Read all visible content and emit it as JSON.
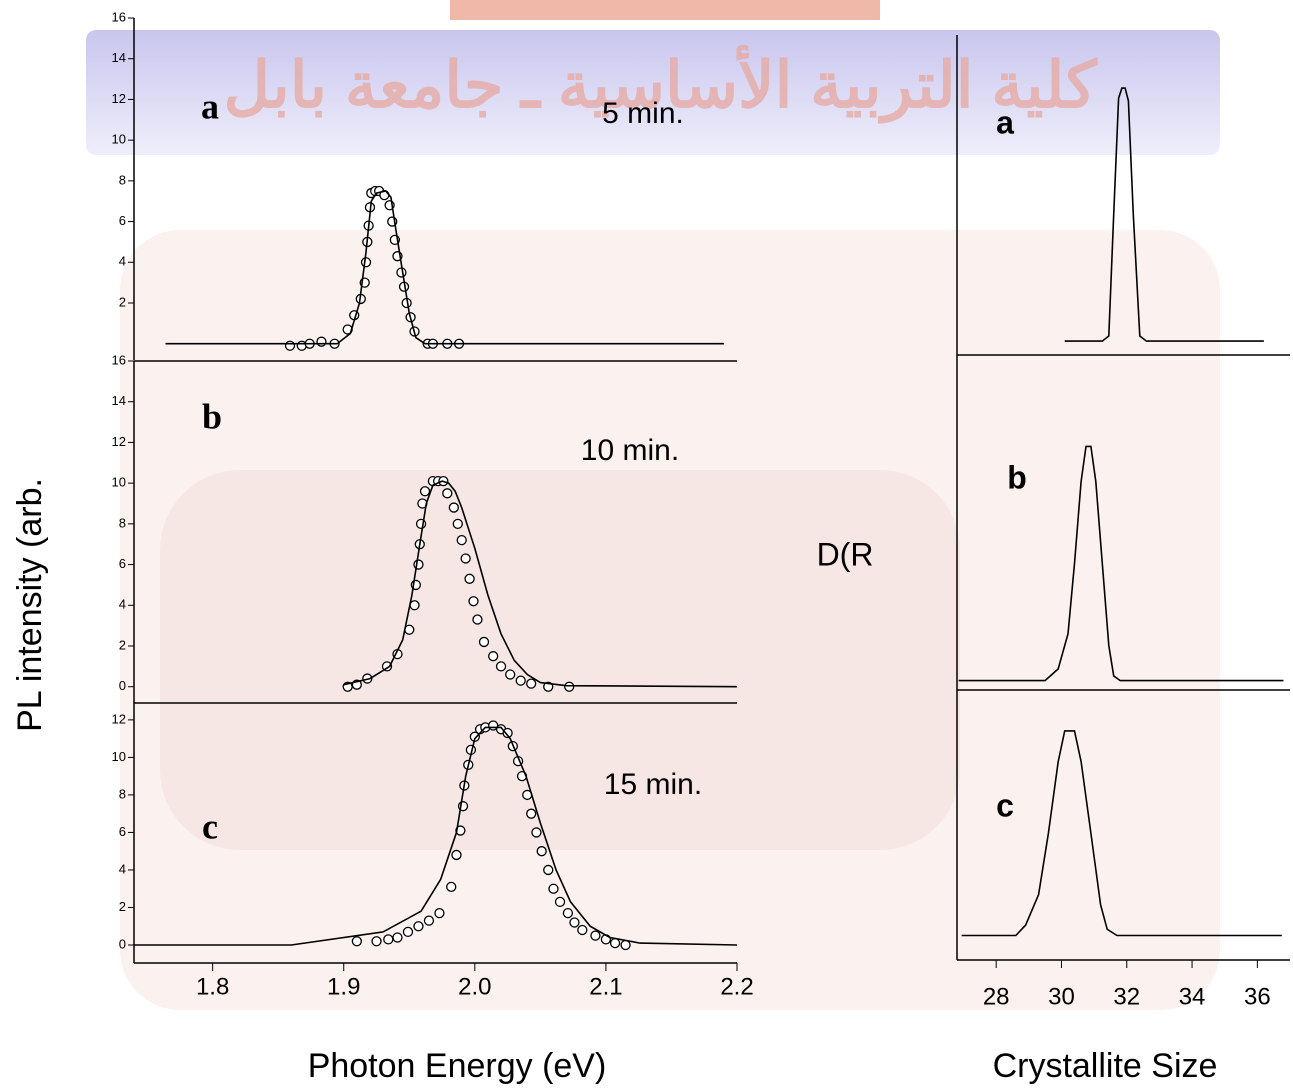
{
  "watermark": "كلية التربية الأساسية ـ جامعة بابل",
  "chart_data": [
    {
      "type": "line",
      "panel_label": "a",
      "annotation": "5 min.",
      "xlim": [
        1.74,
        2.2
      ],
      "ylim": [
        -0.8,
        16
      ],
      "yticks": [
        2,
        4,
        6,
        8,
        10,
        12,
        14,
        16
      ],
      "series": [
        {
          "style": "markers",
          "color": "#000000",
          "x": [
            1.859,
            1.868,
            1.874,
            1.883,
            1.893,
            1.903,
            1.908,
            1.913,
            1.916,
            1.917,
            1.918,
            1.919,
            1.92,
            1.921,
            1.924,
            1.927,
            1.931,
            1.935,
            1.937,
            1.939,
            1.941,
            1.944,
            1.946,
            1.948,
            1.951,
            1.954,
            1.964,
            1.968,
            1.979,
            1.988
          ],
          "values": [
            -0.1,
            -0.1,
            0,
            0.1,
            0,
            0.7,
            1.4,
            2.2,
            3.0,
            4.0,
            5.0,
            5.8,
            6.7,
            7.4,
            7.5,
            7.5,
            7.3,
            6.8,
            6.0,
            5.1,
            4.3,
            3.5,
            2.8,
            2.0,
            1.3,
            0.6,
            0,
            0,
            0,
            0
          ]
        },
        {
          "style": "line",
          "color": "#000000",
          "x": [
            1.764,
            1.895,
            1.905,
            1.912,
            1.917,
            1.921,
            1.925,
            1.932,
            1.936,
            1.94,
            1.945,
            1.95,
            1.955,
            1.962,
            2.19
          ],
          "values": [
            0,
            0,
            0.5,
            2,
            4.5,
            7.0,
            7.4,
            7.5,
            7.2,
            5.5,
            3.5,
            1.5,
            0.3,
            0,
            0
          ]
        }
      ]
    },
    {
      "type": "line",
      "panel_label": "b",
      "annotation": "10 min.",
      "ylabel": "PL intensity (arb.",
      "xlim": [
        1.74,
        2.2
      ],
      "ylim": [
        -0.8,
        16
      ],
      "yticks": [
        0,
        2,
        4,
        6,
        8,
        10,
        12,
        14,
        16
      ],
      "series": [
        {
          "style": "markers",
          "color": "#000000",
          "x": [
            1.903,
            1.91,
            1.918,
            1.933,
            1.941,
            1.95,
            1.954,
            1.955,
            1.957,
            1.958,
            1.959,
            1.96,
            1.962,
            1.968,
            1.972,
            1.976,
            1.979,
            1.984,
            1.987,
            1.99,
            1.993,
            1.996,
            1.999,
            2.002,
            2.007,
            2.014,
            2.02,
            2.027,
            2.035,
            2.043,
            2.056,
            2.072
          ],
          "values": [
            0,
            0.1,
            0.4,
            1.0,
            1.6,
            2.8,
            4.0,
            5.0,
            6.0,
            7.0,
            8.0,
            9.0,
            9.6,
            10.1,
            10.1,
            10.1,
            9.5,
            8.8,
            8.0,
            7.2,
            6.3,
            5.3,
            4.2,
            3.3,
            2.2,
            1.5,
            1.0,
            0.6,
            0.3,
            0.15,
            0,
            0
          ]
        },
        {
          "style": "line",
          "color": "#000000",
          "x": [
            1.9,
            1.92,
            1.935,
            1.945,
            1.952,
            1.958,
            1.963,
            1.968,
            1.975,
            1.98,
            1.985,
            1.99,
            2.0,
            2.01,
            2.02,
            2.03,
            2.04,
            2.05,
            2.07,
            2.2
          ],
          "values": [
            0.1,
            0.4,
            1.0,
            2.3,
            4.5,
            7,
            9,
            9.9,
            10.1,
            10,
            9.6,
            8.8,
            6.8,
            4.5,
            2.6,
            1.3,
            0.6,
            0.2,
            0.05,
            0
          ]
        }
      ]
    },
    {
      "type": "line",
      "panel_label": "c",
      "annotation": "15 min.",
      "xlabel": "Photon Energy (eV)",
      "xlim": [
        1.74,
        2.2
      ],
      "ylim": [
        -0.96,
        12.9
      ],
      "yticks": [
        0,
        2,
        4,
        6,
        8,
        10,
        12
      ],
      "xticks": [
        1.8,
        1.9,
        {
          "value": 2.0,
          "label": "2.0"
        },
        2.1,
        2.2
      ],
      "series": [
        {
          "style": "markers",
          "color": "#000000",
          "x": [
            1.91,
            1.925,
            1.934,
            1.941,
            1.949,
            1.957,
            1.965,
            1.973,
            1.982,
            1.986,
            1.989,
            1.991,
            1.992,
            1.995,
            1.997,
            2.0,
            2.004,
            2.008,
            2.014,
            2.02,
            2.025,
            2.029,
            2.033,
            2.036,
            2.04,
            2.043,
            2.047,
            2.051,
            2.056,
            2.06,
            2.065,
            2.071,
            2.076,
            2.082,
            2.092,
            2.1,
            2.107,
            2.115
          ],
          "values": [
            0.2,
            0.2,
            0.3,
            0.4,
            0.7,
            1.0,
            1.3,
            1.7,
            3.1,
            4.8,
            6.1,
            7.4,
            8.5,
            9.6,
            10.4,
            11.1,
            11.5,
            11.6,
            11.7,
            11.5,
            11.3,
            10.6,
            9.8,
            9.0,
            8.0,
            7.0,
            6.0,
            5.0,
            4.0,
            3.0,
            2.3,
            1.7,
            1.2,
            0.8,
            0.5,
            0.3,
            0.1,
            0
          ]
        },
        {
          "style": "line",
          "color": "#000000",
          "x": [
            1.74,
            1.86,
            1.93,
            1.959,
            1.974,
            1.986,
            1.993,
            2.0,
            2.008,
            2.02,
            2.027,
            2.039,
            2.05,
            2.062,
            2.073,
            2.088,
            2.103,
            2.126,
            2.2
          ],
          "values": [
            0,
            0,
            0.7,
            1.8,
            3.5,
            6,
            9,
            11,
            11.6,
            11.6,
            11,
            9,
            6.5,
            4,
            2.3,
            1,
            0.4,
            0.1,
            0
          ]
        }
      ]
    },
    {
      "type": "line",
      "panel_label": "a",
      "xlim": [
        26.8,
        37
      ],
      "ylim": [
        -0.055,
        1.21
      ],
      "series": [
        {
          "style": "line",
          "color": "#000000",
          "x": [
            30.1,
            31.25,
            31.45,
            31.6,
            31.75,
            31.85,
            31.95,
            32.05,
            32.2,
            32.4,
            32.6,
            32.9,
            36.2
          ],
          "values": [
            0,
            0,
            0.02,
            0.5,
            0.96,
            1.0,
            1.0,
            0.95,
            0.5,
            0.02,
            0,
            0,
            0
          ]
        }
      ]
    },
    {
      "type": "line",
      "panel_label": "b",
      "ylabel": "D(R",
      "xlim": [
        26.8,
        37
      ],
      "ylim": [
        -0.04,
        1.39
      ],
      "series": [
        {
          "style": "line",
          "color": "#000000",
          "x": [
            26.85,
            29.5,
            29.9,
            30.2,
            30.4,
            30.6,
            30.75,
            30.9,
            31.05,
            31.25,
            31.45,
            31.6,
            31.8,
            36.8
          ],
          "values": [
            0,
            0,
            0.05,
            0.2,
            0.5,
            0.85,
            1.0,
            1.0,
            0.85,
            0.5,
            0.15,
            0.02,
            0,
            0
          ]
        }
      ]
    },
    {
      "type": "line",
      "panel_label": "c",
      "xlabel": "Crystallite Size",
      "xlim": [
        26.8,
        37
      ],
      "ylim": [
        -0.12,
        1.2
      ],
      "xticks": [
        28,
        30,
        32,
        34,
        36
      ],
      "series": [
        {
          "style": "line",
          "color": "#000000",
          "x": [
            26.94,
            28.6,
            28.9,
            29.3,
            29.6,
            29.9,
            30.1,
            30.4,
            30.6,
            30.9,
            31.2,
            31.4,
            31.7,
            36.75
          ],
          "values": [
            0,
            0,
            0.05,
            0.2,
            0.5,
            0.85,
            1.0,
            1.0,
            0.85,
            0.5,
            0.15,
            0.03,
            0,
            0
          ]
        }
      ]
    }
  ]
}
